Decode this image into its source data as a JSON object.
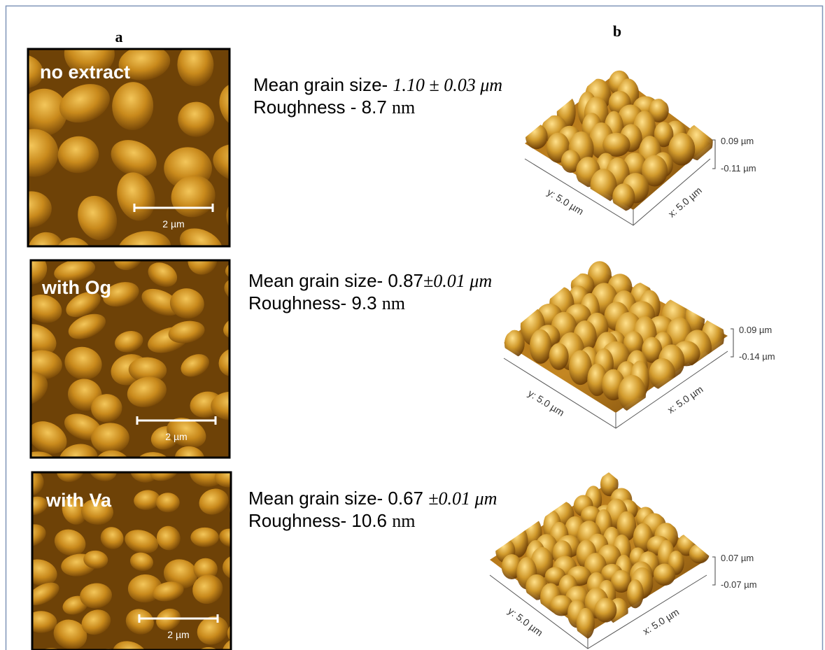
{
  "panel_labels": [
    "a",
    "b"
  ],
  "rows": [
    {
      "image_label": "no extract",
      "scale_bar": "2 µm",
      "grain_label": "Mean grain size- ",
      "grain_value": "1.10 ±  0.03 μm",
      "roughness_label": "Roughness - 8.7 ",
      "roughness_unit": "nm",
      "z_max": "0.09 µm",
      "z_min": "-0.11 µm",
      "y_axis": "y: 5.0 µm",
      "x_axis": "x: 5.0 µm"
    },
    {
      "image_label": "with Og",
      "scale_bar": "2 µm",
      "grain_label": "Mean grain size- 0.87",
      "grain_value": "±0.01 μm",
      "roughness_label": "Roughness- 9.3 ",
      "roughness_unit": "nm",
      "z_max": "0.09 µm",
      "z_min": "-0.14 µm",
      "y_axis": "y: 5.0 µm",
      "x_axis": "x: 5.0 µm"
    },
    {
      "image_label": "with Va",
      "scale_bar": "2 µm",
      "grain_label": "Mean grain size- 0.67 ",
      "grain_value": "±0.01 μm",
      "roughness_label": "Roughness- 10.6 ",
      "roughness_unit": "nm",
      "z_max": "0.07 µm",
      "z_min": "-0.07 µm",
      "y_axis": "y: 5.0 µm",
      "x_axis": "x: 5.0 µm"
    }
  ]
}
